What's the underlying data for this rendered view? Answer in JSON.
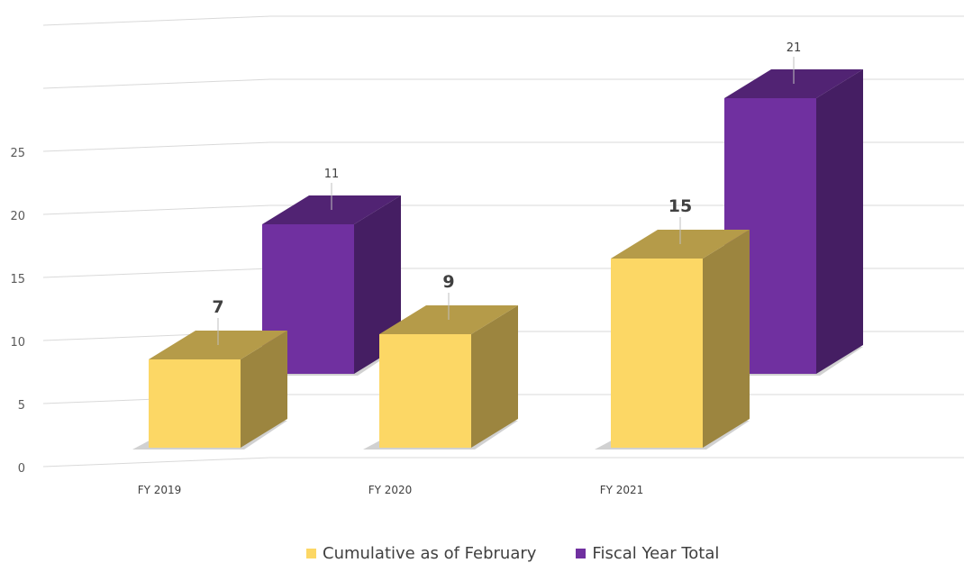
{
  "chart_data": {
    "type": "bar",
    "categories": [
      "FY 2019",
      "FY 2020",
      "FY 2021"
    ],
    "series": [
      {
        "name": "Cumulative as of February",
        "values": [
          7,
          9,
          15
        ],
        "color": "#FCD765"
      },
      {
        "name": "Fiscal Year Total",
        "values": [
          11,
          null,
          21
        ],
        "color": "#7030A0"
      }
    ],
    "yticks": [
      "0",
      "5",
      "10",
      "15",
      "20",
      "25"
    ],
    "ylim": [
      0,
      25
    ],
    "grid": true,
    "legend_position": "bottom"
  }
}
